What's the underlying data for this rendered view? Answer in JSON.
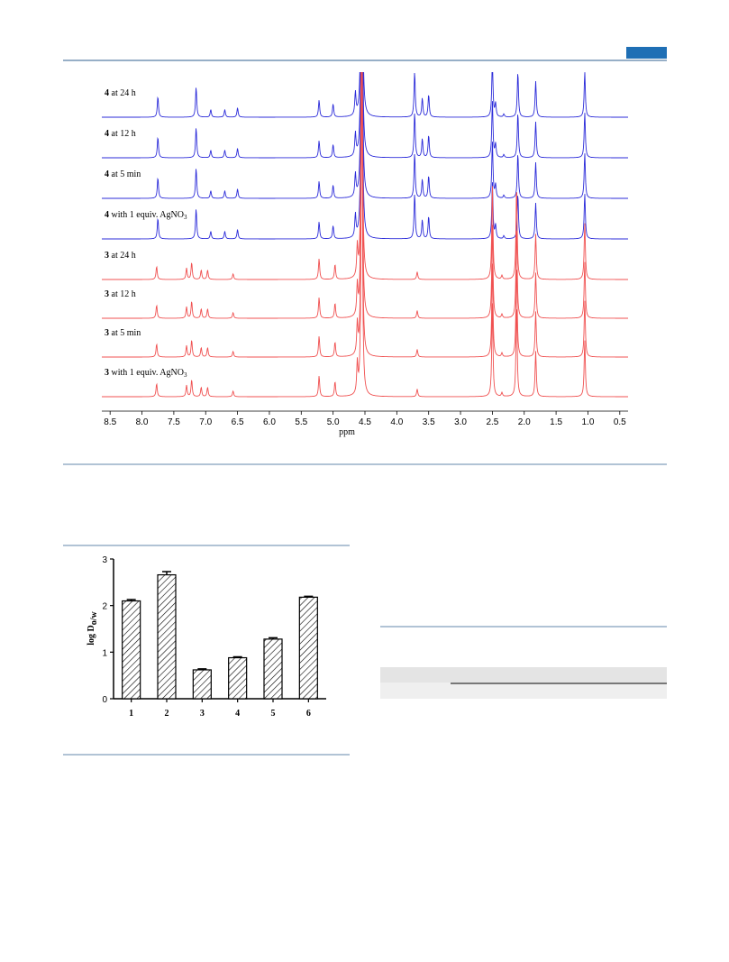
{
  "nmr": {
    "xlabel": "ppm",
    "xlim": [
      8.63,
      0.37
    ],
    "xticks": [
      8.5,
      {
        "value": 8,
        "label": "8.0"
      },
      7.5,
      {
        "value": 7,
        "label": "7.0"
      },
      6.5,
      {
        "value": 6,
        "label": "6.0"
      },
      5.5,
      {
        "value": 5,
        "label": "5.0"
      },
      4.5,
      {
        "value": 4,
        "label": "4.0"
      },
      3.5,
      {
        "value": 3,
        "label": "3.0"
      },
      2.5,
      {
        "value": 2,
        "label": "2.0"
      },
      1.5,
      {
        "value": 1,
        "label": "1.0"
      },
      0.5
    ],
    "peak_sets": {
      "4": {
        "color": "#2b2bd9",
        "peaks": [
          {
            "ppm": 7.75,
            "height": 0.55
          },
          {
            "ppm": 7.15,
            "height": 0.8
          },
          {
            "ppm": 6.92,
            "height": 0.2
          },
          {
            "ppm": 6.7,
            "height": 0.2
          },
          {
            "ppm": 6.5,
            "height": 0.25
          },
          {
            "ppm": 5.22,
            "height": 0.45
          },
          {
            "ppm": 5.0,
            "height": 0.35
          },
          {
            "ppm": 4.65,
            "height": 0.6
          },
          {
            "ppm": 4.55,
            "height": 10
          },
          {
            "ppm": 3.72,
            "height": 1.2
          },
          {
            "ppm": 3.6,
            "height": 0.5
          },
          {
            "ppm": 3.5,
            "height": 0.6
          },
          {
            "ppm": 2.5,
            "height": 1.5
          },
          {
            "ppm": 2.45,
            "height": 0.35
          },
          {
            "ppm": 2.32,
            "height": 0.08
          },
          {
            "ppm": 2.1,
            "height": 1.2
          },
          {
            "ppm": 1.82,
            "height": 0.95
          },
          {
            "ppm": 1.05,
            "height": 1.2
          }
        ]
      },
      "3": {
        "color": "#f05050",
        "peaks": [
          {
            "ppm": 7.77,
            "height": 0.35
          },
          {
            "ppm": 7.3,
            "height": 0.3
          },
          {
            "ppm": 7.22,
            "height": 0.45
          },
          {
            "ppm": 7.07,
            "height": 0.25
          },
          {
            "ppm": 6.97,
            "height": 0.25
          },
          {
            "ppm": 6.57,
            "height": 0.15
          },
          {
            "ppm": 5.22,
            "height": 0.55
          },
          {
            "ppm": 4.97,
            "height": 0.4
          },
          {
            "ppm": 4.62,
            "height": 0.8
          },
          {
            "ppm": 4.55,
            "height": 10
          },
          {
            "ppm": 3.68,
            "height": 0.2
          },
          {
            "ppm": 2.5,
            "height": 2.5
          },
          {
            "ppm": 2.35,
            "height": 0.1
          },
          {
            "ppm": 2.12,
            "height": 2.5
          },
          {
            "ppm": 1.82,
            "height": 1.2
          },
          {
            "ppm": 1.05,
            "height": 1.5
          }
        ]
      }
    },
    "traces": [
      {
        "compound": "4",
        "condition": "at 24 h"
      },
      {
        "compound": "4",
        "condition": "at 12 h"
      },
      {
        "compound": "4",
        "condition": "at 5 min"
      },
      {
        "compound": "4",
        "condition": "with 1 equiv. AgNO",
        "sub": "3"
      },
      {
        "compound": "3",
        "condition": "at 24 h"
      },
      {
        "compound": "3",
        "condition": "at 12 h"
      },
      {
        "compound": "3",
        "condition": "at 5 min"
      },
      {
        "compound": "3",
        "condition": "with 1 equiv. AgNO",
        "sub": "3"
      }
    ]
  },
  "bar_chart": {
    "type": "bar",
    "ylabel": "log D",
    "ylabel_sub": "o/w",
    "categories": [
      "1",
      "2",
      "3",
      "4",
      "5",
      "6"
    ],
    "values": [
      2.1,
      2.66,
      0.62,
      0.88,
      1.28,
      2.18
    ],
    "errors": [
      0.03,
      0.07,
      0.02,
      0.02,
      0.03,
      0.02
    ],
    "ylim": [
      0,
      3
    ],
    "yticks": [
      0,
      1,
      2,
      3
    ]
  }
}
